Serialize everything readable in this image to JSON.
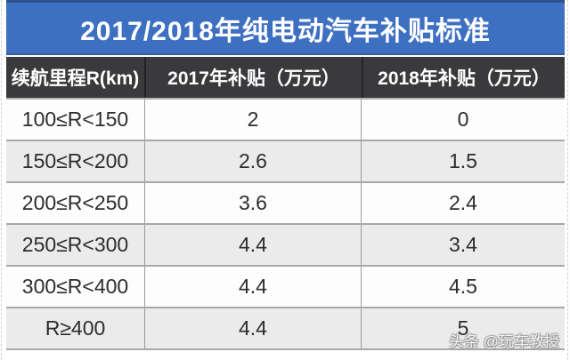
{
  "title": "2017/2018年纯电动汽车补贴标准",
  "table": {
    "headers": [
      "续航里程R(km)",
      "2017年补贴（万元）",
      "2018年补贴（万元）"
    ],
    "rows": [
      [
        "100≤R<150",
        "2",
        "0"
      ],
      [
        "150≤R<200",
        "2.6",
        "1.5"
      ],
      [
        "200≤R<250",
        "3.6",
        "2.4"
      ],
      [
        "250≤R<300",
        "4.4",
        "3.4"
      ],
      [
        "300≤R<400",
        "4.4",
        "4.5"
      ],
      [
        "R≥400",
        "4.4",
        "5"
      ]
    ]
  },
  "watermark": "头条 @玩车教授",
  "colors": {
    "title_bg": "#3e70c2",
    "title_top_border": "#2d4f8e",
    "header_bg": "#3a3a3c",
    "row_bg": "#fdfdfd",
    "row_alt_bg": "#ebebeb",
    "divider": "#a8a8a8",
    "text": "#2d2d2d"
  },
  "chart_data": {
    "type": "table",
    "title": "2017/2018年纯电动汽车补贴标准",
    "columns": [
      "续航里程R(km)",
      "2017年补贴（万元）",
      "2018年补贴（万元）"
    ],
    "rows": [
      {
        "range": "100≤R<150",
        "subsidy_2017": 2,
        "subsidy_2018": 0
      },
      {
        "range": "150≤R<200",
        "subsidy_2017": 2.6,
        "subsidy_2018": 1.5
      },
      {
        "range": "200≤R<250",
        "subsidy_2017": 3.6,
        "subsidy_2018": 2.4
      },
      {
        "range": "250≤R<300",
        "subsidy_2017": 4.4,
        "subsidy_2018": 3.4
      },
      {
        "range": "300≤R<400",
        "subsidy_2017": 4.4,
        "subsidy_2018": 4.5
      },
      {
        "range": "R≥400",
        "subsidy_2017": 4.4,
        "subsidy_2018": 5
      }
    ],
    "units": "万元 (10k CNY)"
  }
}
